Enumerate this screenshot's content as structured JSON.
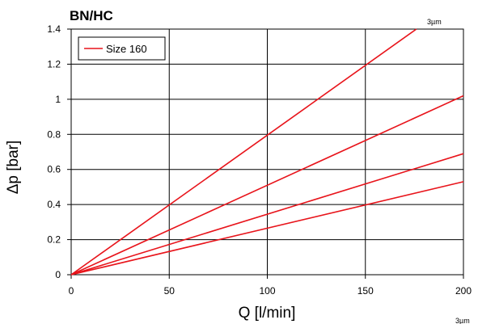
{
  "chart_data": {
    "type": "line",
    "title": "BN/HC",
    "xlabel": "Q [l/min]",
    "ylabel": "Δp [bar]",
    "xlim": [
      0,
      200
    ],
    "ylim": [
      0,
      1.4
    ],
    "x_ticks": [
      "0",
      "50",
      "100",
      "150",
      "200"
    ],
    "y_ticks": [
      "0",
      "0.2",
      "0.4",
      "0.6",
      "0.8",
      "1",
      "1.2",
      "1.4"
    ],
    "grid": true,
    "legend_position": "top-left",
    "series_color": "#e8141b",
    "series": [
      {
        "name": "Size 160",
        "x": [
          0,
          176
        ],
        "y": [
          0,
          1.4
        ]
      },
      {
        "x": [
          0,
          200
        ],
        "y": [
          0,
          1.02
        ]
      },
      {
        "x": [
          0,
          200
        ],
        "y": [
          0,
          0.69
        ]
      },
      {
        "x": [
          0,
          200
        ],
        "y": [
          0,
          0.53
        ]
      }
    ],
    "annotations": [
      {
        "text": "3µm",
        "x": 178,
        "y": 1.4
      },
      {
        "text": "3µm",
        "position": "bottom-right"
      }
    ]
  }
}
